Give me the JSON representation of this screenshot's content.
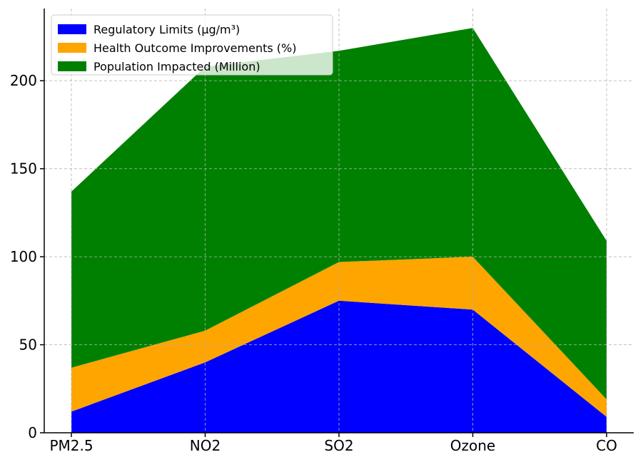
{
  "chart_data": {
    "type": "area",
    "stacked": true,
    "categories": [
      "PM2.5",
      "NO2",
      "SO2",
      "Ozone",
      "CO"
    ],
    "series": [
      {
        "name": "Regulatory Limits (µg/m³)",
        "values": [
          12,
          40,
          75,
          70,
          9
        ],
        "color": "#0000ff"
      },
      {
        "name": "Health Outcome Improvements (%)",
        "values": [
          25,
          18,
          22,
          30,
          10
        ],
        "color": "#ffa500"
      },
      {
        "name": "Population Impacted (Million)",
        "values": [
          100,
          150,
          120,
          130,
          90
        ],
        "color": "#008000"
      }
    ],
    "title": "",
    "xlabel": "",
    "ylabel": "",
    "ylim": [
      0,
      241
    ],
    "yticks": [
      0,
      50,
      100,
      150,
      200
    ],
    "grid": true,
    "legend_position": "top-left"
  }
}
